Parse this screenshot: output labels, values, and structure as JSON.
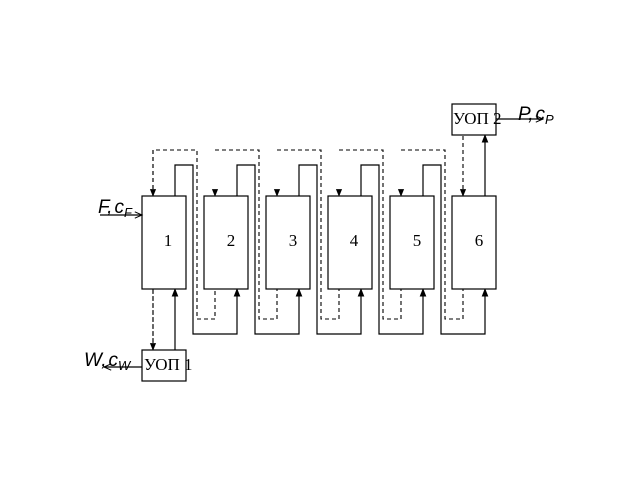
{
  "blocks": [
    {
      "label": "1"
    },
    {
      "label": "2"
    },
    {
      "label": "3"
    },
    {
      "label": "4"
    },
    {
      "label": "5"
    },
    {
      "label": "6"
    }
  ],
  "uop1": {
    "label": "УОП 1"
  },
  "uop2": {
    "label": "УОП 2"
  },
  "inputs": {
    "feed": {
      "var": "F",
      "comma": ",",
      "c": "c",
      "sub": "F"
    },
    "water": {
      "var": "W",
      "comma": ",",
      "c": "c",
      "sub": "W"
    }
  },
  "outputs": {
    "product": {
      "var": "P",
      "comma": ",",
      "c": "c",
      "sub": "P"
    }
  }
}
